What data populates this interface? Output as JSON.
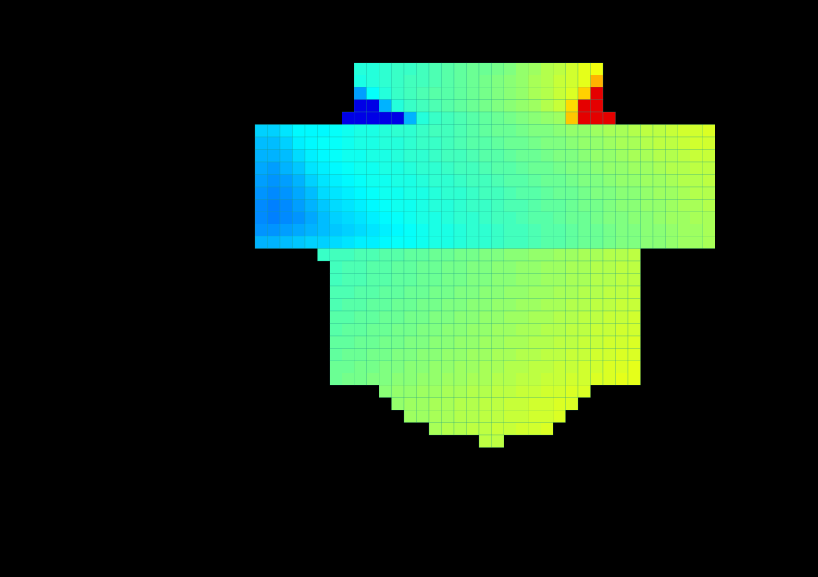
{
  "colormap": "jet",
  "background": "#000000",
  "cell_outline": "#1c9c8a",
  "chart_data": {
    "type": "heatmap",
    "title": "",
    "xlabel": "",
    "ylabel": "",
    "value_range": [
      0,
      1
    ],
    "column_count": 37,
    "row_count": 37,
    "rows": [
      {
        "row": 0,
        "from_col": 8,
        "values": [
          0.41,
          0.41,
          0.42,
          0.43,
          0.43,
          0.44,
          0.45,
          0.46,
          0.47,
          0.48,
          0.48,
          0.49,
          0.5,
          0.52,
          0.53,
          0.55,
          0.56,
          0.58,
          0.6,
          0.61
        ]
      },
      {
        "row": 1,
        "from_col": 8,
        "values": [
          0.4,
          0.41,
          0.42,
          0.43,
          0.44,
          0.44,
          0.45,
          0.46,
          0.47,
          0.48,
          0.49,
          0.5,
          0.51,
          0.52,
          0.54,
          0.55,
          0.57,
          0.58,
          0.6,
          0.7
        ]
      },
      {
        "row": 2,
        "from_col": 8,
        "values": [
          0.28,
          0.38,
          0.41,
          0.43,
          0.44,
          0.45,
          0.46,
          0.46,
          0.47,
          0.48,
          0.49,
          0.5,
          0.51,
          0.52,
          0.54,
          0.55,
          0.57,
          0.59,
          0.67,
          0.9
        ]
      },
      {
        "row": 3,
        "from_col": 8,
        "values": [
          0.1,
          0.1,
          0.3,
          0.41,
          0.43,
          0.44,
          0.45,
          0.46,
          0.47,
          0.48,
          0.49,
          0.5,
          0.51,
          0.52,
          0.53,
          0.55,
          0.57,
          0.66,
          0.9,
          0.9
        ]
      },
      {
        "row": 4,
        "from_col": 7,
        "values": [
          0.1,
          0.1,
          0.1,
          0.1,
          0.1,
          0.3,
          0.41,
          0.43,
          0.44,
          0.45,
          0.46,
          0.47,
          0.48,
          0.49,
          0.5,
          0.51,
          0.52,
          0.53,
          0.68,
          0.9,
          0.9,
          0.9
        ]
      },
      {
        "row": 5,
        "from_col": 0,
        "values": [
          0.33,
          0.33,
          0.35,
          0.37,
          0.37,
          0.37,
          0.38,
          0.39,
          0.4,
          0.4,
          0.41,
          0.42,
          0.42,
          0.43,
          0.44,
          0.44,
          0.45,
          0.46,
          0.47,
          0.48,
          0.48,
          0.49,
          0.5,
          0.5,
          0.51,
          0.52,
          0.52,
          0.53,
          0.54,
          0.54,
          0.55,
          0.56,
          0.56,
          0.57,
          0.58,
          0.58,
          0.59
        ]
      },
      {
        "row": 6,
        "from_col": 0,
        "values": [
          0.31,
          0.31,
          0.33,
          0.36,
          0.37,
          0.38,
          0.38,
          0.39,
          0.4,
          0.4,
          0.41,
          0.41,
          0.42,
          0.43,
          0.43,
          0.44,
          0.45,
          0.46,
          0.46,
          0.47,
          0.48,
          0.48,
          0.49,
          0.5,
          0.5,
          0.51,
          0.52,
          0.52,
          0.53,
          0.54,
          0.54,
          0.55,
          0.56,
          0.56,
          0.57,
          0.58,
          0.58
        ]
      },
      {
        "row": 7,
        "from_col": 0,
        "values": [
          0.3,
          0.3,
          0.31,
          0.34,
          0.36,
          0.37,
          0.38,
          0.39,
          0.39,
          0.4,
          0.4,
          0.41,
          0.42,
          0.42,
          0.43,
          0.44,
          0.44,
          0.45,
          0.46,
          0.46,
          0.47,
          0.48,
          0.48,
          0.49,
          0.5,
          0.5,
          0.51,
          0.52,
          0.52,
          0.53,
          0.54,
          0.54,
          0.55,
          0.55,
          0.56,
          0.57,
          0.57
        ]
      },
      {
        "row": 8,
        "from_col": 0,
        "values": [
          0.29,
          0.28,
          0.3,
          0.32,
          0.35,
          0.36,
          0.37,
          0.38,
          0.39,
          0.39,
          0.4,
          0.4,
          0.41,
          0.42,
          0.42,
          0.43,
          0.44,
          0.44,
          0.45,
          0.46,
          0.46,
          0.47,
          0.48,
          0.48,
          0.49,
          0.5,
          0.5,
          0.51,
          0.52,
          0.52,
          0.53,
          0.53,
          0.54,
          0.55,
          0.55,
          0.56,
          0.56
        ]
      },
      {
        "row": 9,
        "from_col": 0,
        "values": [
          0.28,
          0.27,
          0.28,
          0.3,
          0.33,
          0.35,
          0.36,
          0.37,
          0.38,
          0.39,
          0.39,
          0.4,
          0.4,
          0.41,
          0.42,
          0.42,
          0.43,
          0.44,
          0.44,
          0.45,
          0.46,
          0.46,
          0.47,
          0.48,
          0.48,
          0.49,
          0.5,
          0.5,
          0.51,
          0.52,
          0.52,
          0.53,
          0.53,
          0.54,
          0.55,
          0.55,
          0.56
        ]
      },
      {
        "row": 10,
        "from_col": 0,
        "values": [
          0.27,
          0.26,
          0.27,
          0.29,
          0.31,
          0.34,
          0.35,
          0.36,
          0.37,
          0.38,
          0.39,
          0.39,
          0.4,
          0.4,
          0.41,
          0.42,
          0.42,
          0.43,
          0.44,
          0.44,
          0.45,
          0.46,
          0.46,
          0.47,
          0.48,
          0.48,
          0.49,
          0.5,
          0.5,
          0.51,
          0.51,
          0.52,
          0.53,
          0.53,
          0.54,
          0.55,
          0.55
        ]
      },
      {
        "row": 11,
        "from_col": 0,
        "values": [
          0.26,
          0.25,
          0.26,
          0.28,
          0.3,
          0.32,
          0.34,
          0.35,
          0.36,
          0.37,
          0.38,
          0.39,
          0.39,
          0.4,
          0.41,
          0.41,
          0.42,
          0.43,
          0.43,
          0.44,
          0.45,
          0.45,
          0.46,
          0.47,
          0.47,
          0.48,
          0.49,
          0.49,
          0.5,
          0.51,
          0.51,
          0.52,
          0.52,
          0.53,
          0.54,
          0.54,
          0.55
        ]
      },
      {
        "row": 12,
        "from_col": 0,
        "values": [
          0.26,
          0.25,
          0.26,
          0.27,
          0.29,
          0.31,
          0.33,
          0.34,
          0.35,
          0.36,
          0.37,
          0.38,
          0.39,
          0.4,
          0.4,
          0.41,
          0.42,
          0.42,
          0.43,
          0.44,
          0.44,
          0.45,
          0.46,
          0.46,
          0.47,
          0.48,
          0.48,
          0.49,
          0.5,
          0.5,
          0.51,
          0.51,
          0.52,
          0.53,
          0.53,
          0.54,
          0.54
        ]
      },
      {
        "row": 13,
        "from_col": 0,
        "values": [
          0.27,
          0.27,
          0.28,
          0.29,
          0.3,
          0.31,
          0.32,
          0.33,
          0.34,
          0.35,
          0.36,
          0.37,
          0.38,
          0.39,
          0.4,
          0.4,
          0.41,
          0.42,
          0.42,
          0.43,
          0.44,
          0.44,
          0.45,
          0.46,
          0.46,
          0.47,
          0.48,
          0.48,
          0.49,
          0.5,
          0.5,
          0.51,
          0.51,
          0.52,
          0.53,
          0.53,
          0.54
        ]
      },
      {
        "row": 14,
        "from_col": 0,
        "values": [
          0.3,
          0.3,
          0.31,
          0.32,
          0.33,
          0.33,
          0.34,
          0.35,
          0.36,
          0.36,
          0.37,
          0.38,
          0.38,
          0.39,
          0.4,
          0.4,
          0.41,
          0.42,
          0.42,
          0.43,
          0.44,
          0.44,
          0.45,
          0.46,
          0.46,
          0.47,
          0.48,
          0.48,
          0.49,
          0.5,
          0.5,
          0.51,
          0.51,
          0.52,
          0.53,
          0.53,
          0.54
        ]
      },
      {
        "row": 15,
        "from_col": 5,
        "values": [
          0.43,
          0.44,
          0.44,
          0.45,
          0.45,
          0.46,
          0.46,
          0.47,
          0.47,
          0.48,
          0.48,
          0.49,
          0.49,
          0.5,
          0.5,
          0.51,
          0.51,
          0.52,
          0.52,
          0.53,
          0.53,
          0.54,
          0.54,
          0.55,
          0.55,
          0.56
        ]
      },
      {
        "row": 16,
        "from_col": 6,
        "values": [
          0.44,
          0.45,
          0.45,
          0.46,
          0.46,
          0.47,
          0.47,
          0.48,
          0.48,
          0.49,
          0.49,
          0.5,
          0.5,
          0.51,
          0.51,
          0.52,
          0.52,
          0.53,
          0.53,
          0.54,
          0.54,
          0.55,
          0.55,
          0.56,
          0.56
        ]
      },
      {
        "row": 17,
        "from_col": 6,
        "values": [
          0.44,
          0.45,
          0.45,
          0.46,
          0.46,
          0.47,
          0.47,
          0.48,
          0.48,
          0.49,
          0.49,
          0.5,
          0.5,
          0.51,
          0.51,
          0.52,
          0.52,
          0.53,
          0.53,
          0.54,
          0.54,
          0.55,
          0.55,
          0.56,
          0.56
        ]
      },
      {
        "row": 18,
        "from_col": 6,
        "values": [
          0.45,
          0.45,
          0.46,
          0.46,
          0.47,
          0.47,
          0.48,
          0.48,
          0.49,
          0.49,
          0.5,
          0.5,
          0.51,
          0.51,
          0.52,
          0.52,
          0.53,
          0.53,
          0.54,
          0.54,
          0.55,
          0.55,
          0.56,
          0.56,
          0.57
        ]
      },
      {
        "row": 19,
        "from_col": 6,
        "values": [
          0.45,
          0.46,
          0.46,
          0.47,
          0.47,
          0.48,
          0.48,
          0.49,
          0.49,
          0.5,
          0.5,
          0.51,
          0.51,
          0.52,
          0.52,
          0.53,
          0.53,
          0.54,
          0.54,
          0.55,
          0.55,
          0.56,
          0.56,
          0.57,
          0.57
        ]
      },
      {
        "row": 20,
        "from_col": 6,
        "values": [
          0.46,
          0.46,
          0.47,
          0.47,
          0.48,
          0.48,
          0.49,
          0.49,
          0.5,
          0.5,
          0.51,
          0.51,
          0.52,
          0.52,
          0.53,
          0.53,
          0.54,
          0.54,
          0.55,
          0.55,
          0.56,
          0.56,
          0.57,
          0.57,
          0.58
        ]
      },
      {
        "row": 21,
        "from_col": 6,
        "values": [
          0.46,
          0.47,
          0.47,
          0.48,
          0.48,
          0.49,
          0.49,
          0.5,
          0.5,
          0.51,
          0.51,
          0.52,
          0.52,
          0.53,
          0.53,
          0.54,
          0.54,
          0.55,
          0.55,
          0.56,
          0.56,
          0.57,
          0.57,
          0.58,
          0.58
        ]
      },
      {
        "row": 22,
        "from_col": 6,
        "values": [
          0.47,
          0.47,
          0.48,
          0.48,
          0.49,
          0.49,
          0.5,
          0.5,
          0.51,
          0.51,
          0.52,
          0.52,
          0.53,
          0.53,
          0.54,
          0.54,
          0.55,
          0.55,
          0.56,
          0.56,
          0.57,
          0.57,
          0.58,
          0.58,
          0.59
        ]
      },
      {
        "row": 23,
        "from_col": 6,
        "values": [
          0.47,
          0.48,
          0.48,
          0.49,
          0.49,
          0.5,
          0.5,
          0.51,
          0.51,
          0.52,
          0.52,
          0.53,
          0.53,
          0.54,
          0.54,
          0.55,
          0.55,
          0.56,
          0.56,
          0.57,
          0.57,
          0.58,
          0.58,
          0.59,
          0.59
        ]
      },
      {
        "row": 24,
        "from_col": 6,
        "values": [
          0.48,
          0.48,
          0.49,
          0.49,
          0.5,
          0.5,
          0.51,
          0.51,
          0.52,
          0.52,
          0.53,
          0.53,
          0.54,
          0.54,
          0.55,
          0.55,
          0.56,
          0.56,
          0.57,
          0.57,
          0.58,
          0.58,
          0.59,
          0.59,
          0.6
        ]
      },
      {
        "row": 25,
        "from_col": 6,
        "values": [
          0.48,
          0.49,
          0.49,
          0.5,
          0.5,
          0.51,
          0.51,
          0.52,
          0.52,
          0.53,
          0.53,
          0.54,
          0.54,
          0.55,
          0.55,
          0.56,
          0.56,
          0.57,
          0.57,
          0.58,
          0.58,
          0.59,
          0.59,
          0.6,
          0.6
        ]
      },
      {
        "row": 26,
        "from_col": 10,
        "values": [
          0.51,
          0.52,
          0.52,
          0.53,
          0.53,
          0.54,
          0.54,
          0.55,
          0.55,
          0.56,
          0.56,
          0.57,
          0.57,
          0.58,
          0.58,
          0.59,
          0.59
        ]
      },
      {
        "row": 27,
        "from_col": 11,
        "values": [
          0.52,
          0.53,
          0.53,
          0.54,
          0.54,
          0.55,
          0.55,
          0.56,
          0.56,
          0.57,
          0.57,
          0.58,
          0.58,
          0.59,
          0.59
        ]
      },
      {
        "row": 28,
        "from_col": 12,
        "values": [
          0.53,
          0.53,
          0.54,
          0.54,
          0.55,
          0.55,
          0.56,
          0.56,
          0.57,
          0.57,
          0.58,
          0.58,
          0.59
        ]
      },
      {
        "row": 29,
        "from_col": 14,
        "values": [
          0.54,
          0.55,
          0.55,
          0.56,
          0.56,
          0.57,
          0.57,
          0.58,
          0.58,
          0.59
        ]
      },
      {
        "row": 30,
        "from_col": 18,
        "values": [
          0.56,
          0.56
        ]
      }
    ]
  }
}
